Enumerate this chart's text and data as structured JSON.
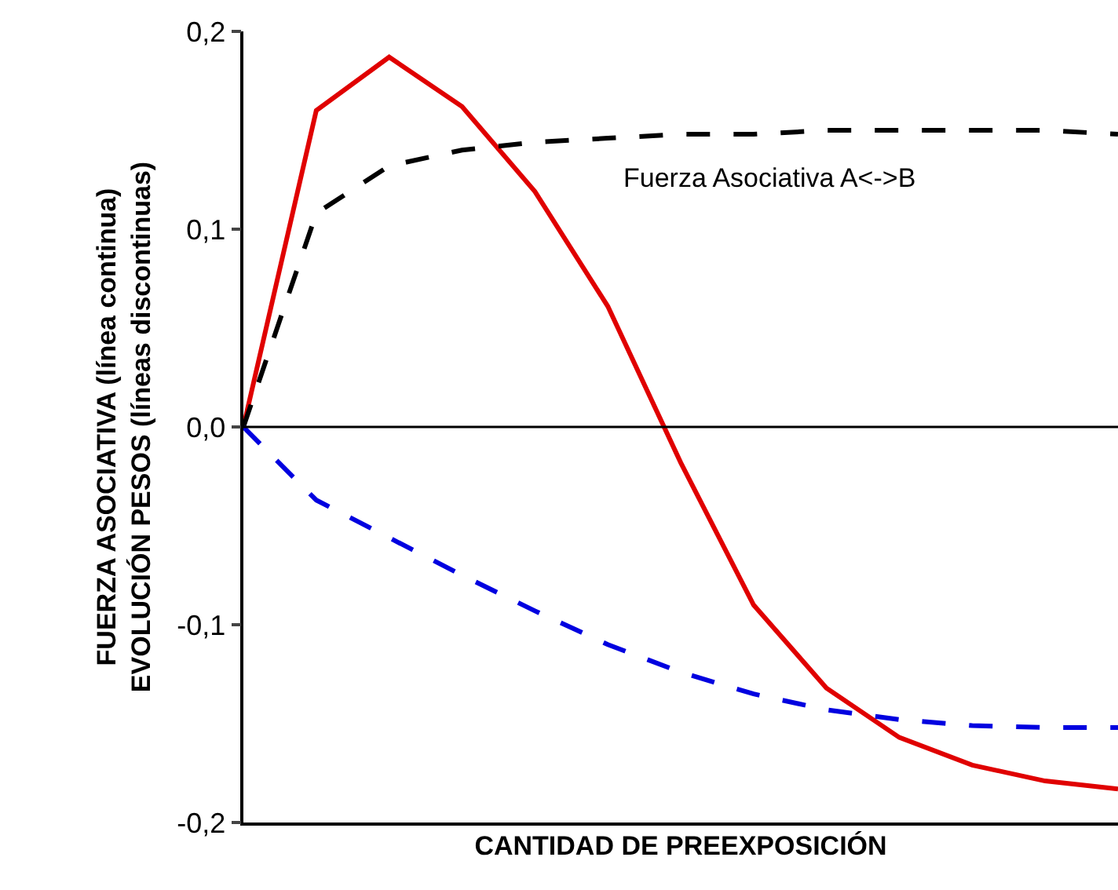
{
  "chart_data": {
    "type": "line",
    "xlabel": "CANTIDAD DE PREEXPOSICIÓN",
    "ylabel": "FUERZA ASOCIATIVA (línea continua)\nEVOLUCIÓN PESOS (líneas discontinuas)",
    "categories": [
      null,
      null,
      null,
      null,
      null,
      null,
      null,
      null,
      null,
      null,
      null,
      null,
      null
    ],
    "series": [
      {
        "color": "#e00000",
        "line_style": "solid",
        "values": [
          0,
          0.16,
          0.187,
          0.162,
          0.119,
          0.061,
          -0.018,
          -0.09,
          -0.132,
          -0.157,
          -0.171,
          -0.179,
          -0.183
        ]
      },
      {
        "color": "#000000",
        "line_style": "dashed",
        "values": [
          0,
          0.108,
          0.132,
          0.14,
          0.144,
          0.146,
          0.148,
          0.148,
          0.15,
          0.15,
          0.15,
          0.15,
          0.148
        ]
      },
      {
        "color": "#0000e0",
        "line_style": "dashed",
        "values": [
          0,
          -0.037,
          -0.056,
          -0.075,
          -0.093,
          -0.11,
          -0.124,
          -0.135,
          -0.143,
          -0.148,
          -0.151,
          -0.152,
          -0.152
        ]
      }
    ],
    "ylim": [
      -0.2,
      0.2
    ],
    "yticks": [
      {
        "value": -0.2,
        "label": "-0,2"
      },
      {
        "value": -0.1,
        "label": "-0,1"
      },
      {
        "value": 0,
        "label": "0,0"
      },
      {
        "value": 0.1,
        "label": "0,1"
      },
      {
        "value": 0.2,
        "label": "0,2"
      }
    ],
    "ref_lines": [
      {
        "axis": "y",
        "value": 0,
        "color": "#000000"
      }
    ],
    "annotations": [
      "Fuerza Asociativa A<->B"
    ],
    "grid": false,
    "marker": "none",
    "tick_labels": "y"
  }
}
